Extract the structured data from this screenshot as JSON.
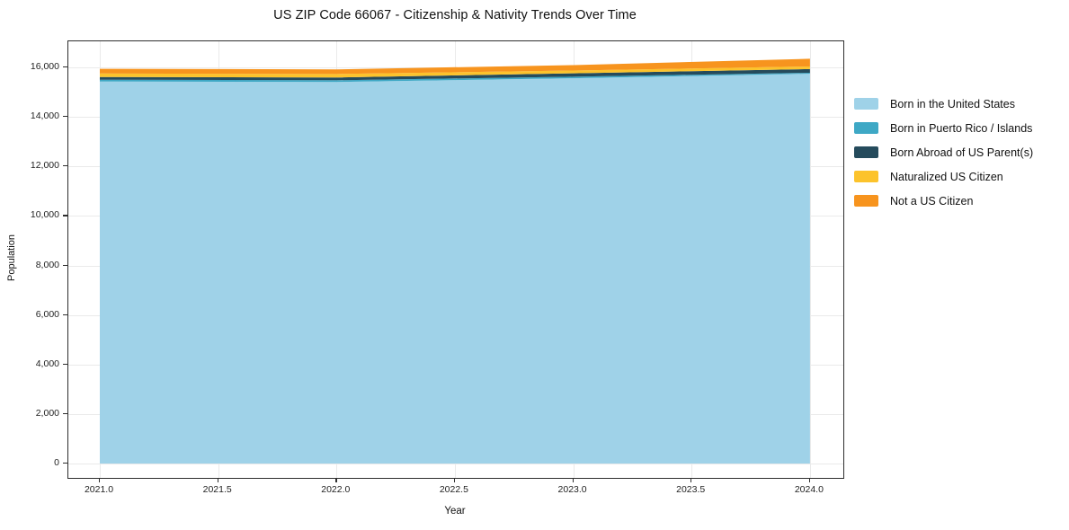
{
  "title": "US ZIP Code 66067 - Citizenship & Nativity Trends Over Time",
  "chart_data": {
    "type": "area",
    "stacked": true,
    "title": "US ZIP Code 66067 - Citizenship & Nativity Trends Over Time",
    "xlabel": "Year",
    "ylabel": "Population",
    "x": [
      2021,
      2022,
      2023,
      2024
    ],
    "series": [
      {
        "name": "Born in the United States",
        "color": "#9FD2E8",
        "values": [
          15430,
          15410,
          15560,
          15740
        ]
      },
      {
        "name": "Born in Puerto Rico / Islands",
        "color": "#3EA8C5",
        "values": [
          70,
          70,
          60,
          40
        ]
      },
      {
        "name": "Born Abroad of US Parent(s)",
        "color": "#254B5C",
        "values": [
          110,
          110,
          140,
          150
        ]
      },
      {
        "name": "Naturalized US Citizen",
        "color": "#FCC32C",
        "values": [
          140,
          140,
          110,
          105
        ]
      },
      {
        "name": "Not a US Citizen",
        "color": "#F7941E",
        "values": [
          190,
          190,
          220,
          310
        ]
      }
    ],
    "totals": [
      15940,
      15920,
      16090,
      16345
    ],
    "x_ticks": [
      2021.0,
      2021.5,
      2022.0,
      2022.5,
      2023.0,
      2023.5,
      2024.0
    ],
    "x_tick_labels": [
      "2021.0",
      "2021.5",
      "2022.0",
      "2022.5",
      "2023.0",
      "2023.5",
      "2024.0"
    ],
    "y_ticks": [
      0,
      2000,
      4000,
      6000,
      8000,
      10000,
      12000,
      14000,
      16000
    ],
    "y_tick_labels": [
      "0",
      "2,000",
      "4,000",
      "6,000",
      "8,000",
      "10,000",
      "12,000",
      "14,000",
      "16,000"
    ],
    "xlim": [
      2020.867,
      2024.141
    ],
    "ylim": [
      -580,
      17050
    ],
    "grid": true,
    "legend_position": "right-outside",
    "background": "#ffffff",
    "gridline_color": "#eaeaea",
    "spine_color": "#2e2e2e"
  }
}
